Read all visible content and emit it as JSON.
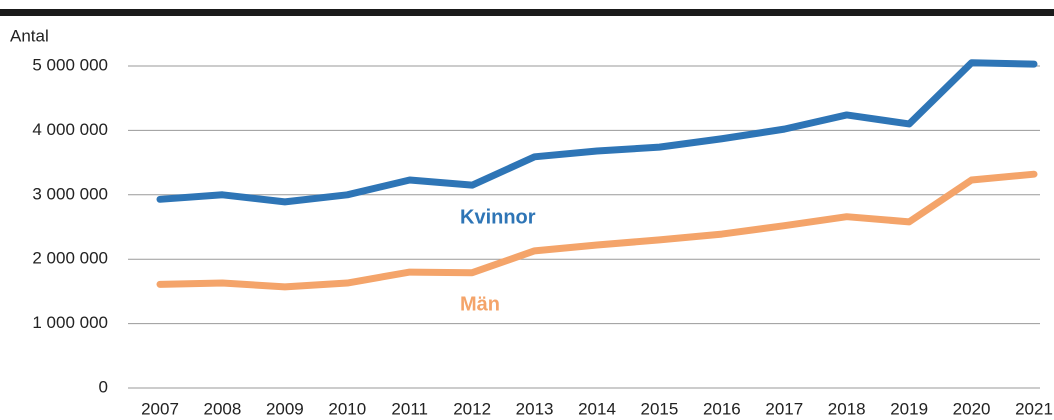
{
  "chart_data": {
    "type": "line",
    "ylabel": "Antal",
    "categories": [
      "2007",
      "2008",
      "2009",
      "2010",
      "2011",
      "2012",
      "2013",
      "2014",
      "2015",
      "2016",
      "2017",
      "2018",
      "2019",
      "2020",
      "2021"
    ],
    "series": [
      {
        "name": "Kvinnor",
        "color": "#2e75b6",
        "values": [
          2930000,
          3000000,
          2890000,
          3000000,
          3230000,
          3150000,
          3590000,
          3680000,
          3740000,
          3870000,
          4020000,
          4240000,
          4100000,
          5050000,
          5030000
        ]
      },
      {
        "name": "Män",
        "color": "#f4a46a",
        "values": [
          1610000,
          1630000,
          1570000,
          1630000,
          1800000,
          1790000,
          2130000,
          2220000,
          2300000,
          2390000,
          2520000,
          2660000,
          2580000,
          3230000,
          3320000
        ]
      }
    ],
    "ylim": [
      0,
      5000000
    ],
    "yticks": [
      0,
      {
        "value": 1000000,
        "label": "1 000 000"
      },
      {
        "value": 2000000,
        "label": "2 000 000"
      },
      {
        "value": 3000000,
        "label": "3 000 000"
      },
      {
        "value": 4000000,
        "label": "4 000 000"
      },
      {
        "value": 5000000,
        "label": "5 000 000"
      }
    ],
    "grid": true
  }
}
